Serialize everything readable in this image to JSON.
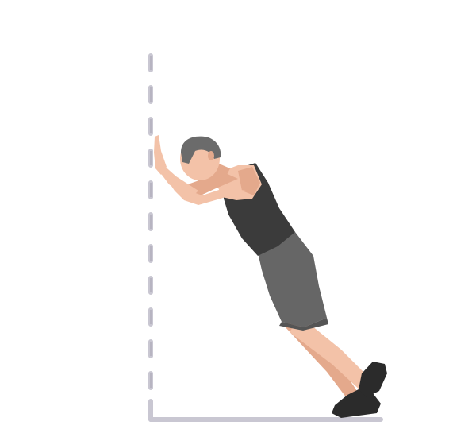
{
  "colors": {
    "background": "#ffffff",
    "wall": "#c9c7d2",
    "wall_edge": "#8e8b9a",
    "floor": "#c9c7d2",
    "skin": "#f3c2a8",
    "skin_shadow": "#e4a98c",
    "hair": "#6b6b6b",
    "tank_top": "#3b3b3b",
    "shorts": "#666666",
    "shoes": "#2b2b2b"
  },
  "illustration": {
    "subject": "wall-push-up-exercise-figure",
    "wall_style": "dashed-vertical-line",
    "floor_style": "solid-horizontal-line"
  }
}
